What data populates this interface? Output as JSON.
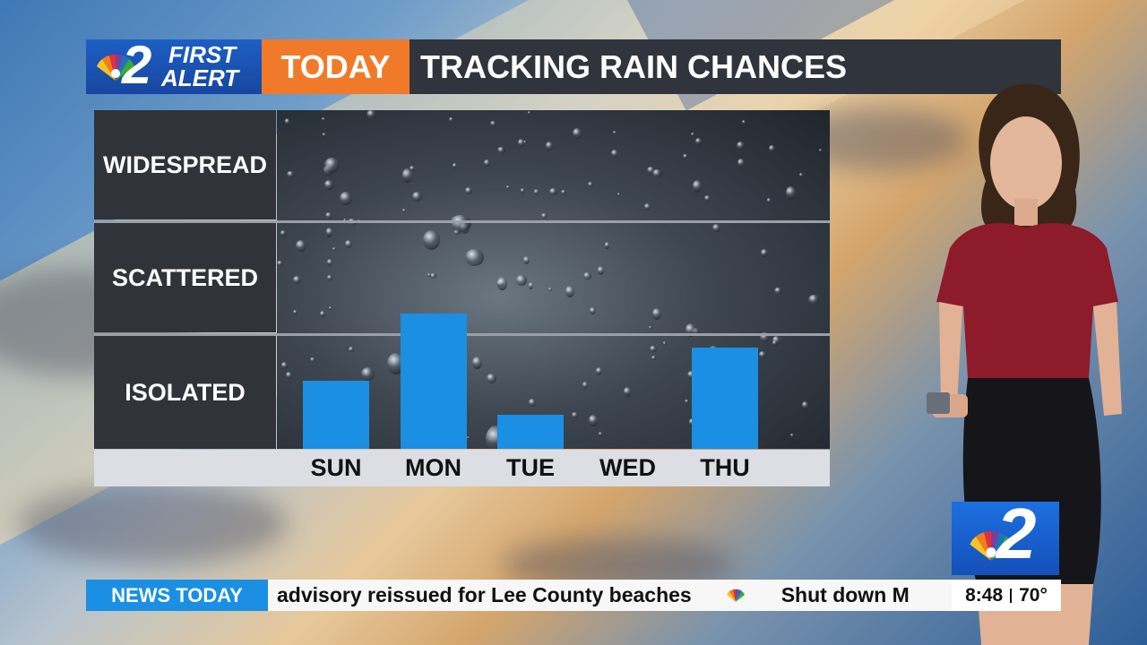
{
  "header": {
    "logo_number": "2",
    "logo_line1": "FIRST",
    "logo_line2": "ALERT",
    "segment": "TODAY",
    "title": "TRACKING RAIN CHANCES"
  },
  "chart_data": {
    "type": "bar",
    "title": "TRACKING RAIN CHANCES",
    "categories": [
      "SUN",
      "MON",
      "TUE",
      "WED",
      "THU"
    ],
    "levels": [
      "ISOLATED",
      "SCATTERED",
      "WIDESPREAD"
    ],
    "values": [
      0.6,
      1.2,
      0.3,
      0.0,
      0.9
    ],
    "ylim": [
      0,
      3
    ],
    "grid": true,
    "bar_color": "#1a8fe3"
  },
  "corner_logo": {
    "number": "2"
  },
  "ticker": {
    "label": "NEWS TODAY",
    "headline1": "advisory reissued for Lee County beaches",
    "headline2": "Shut down M",
    "time": "8:48",
    "temperature": "70°"
  },
  "colors": {
    "brand_blue": "#1a8fe3",
    "today_orange": "#f07a2a",
    "panel_dark": "#30333a"
  }
}
